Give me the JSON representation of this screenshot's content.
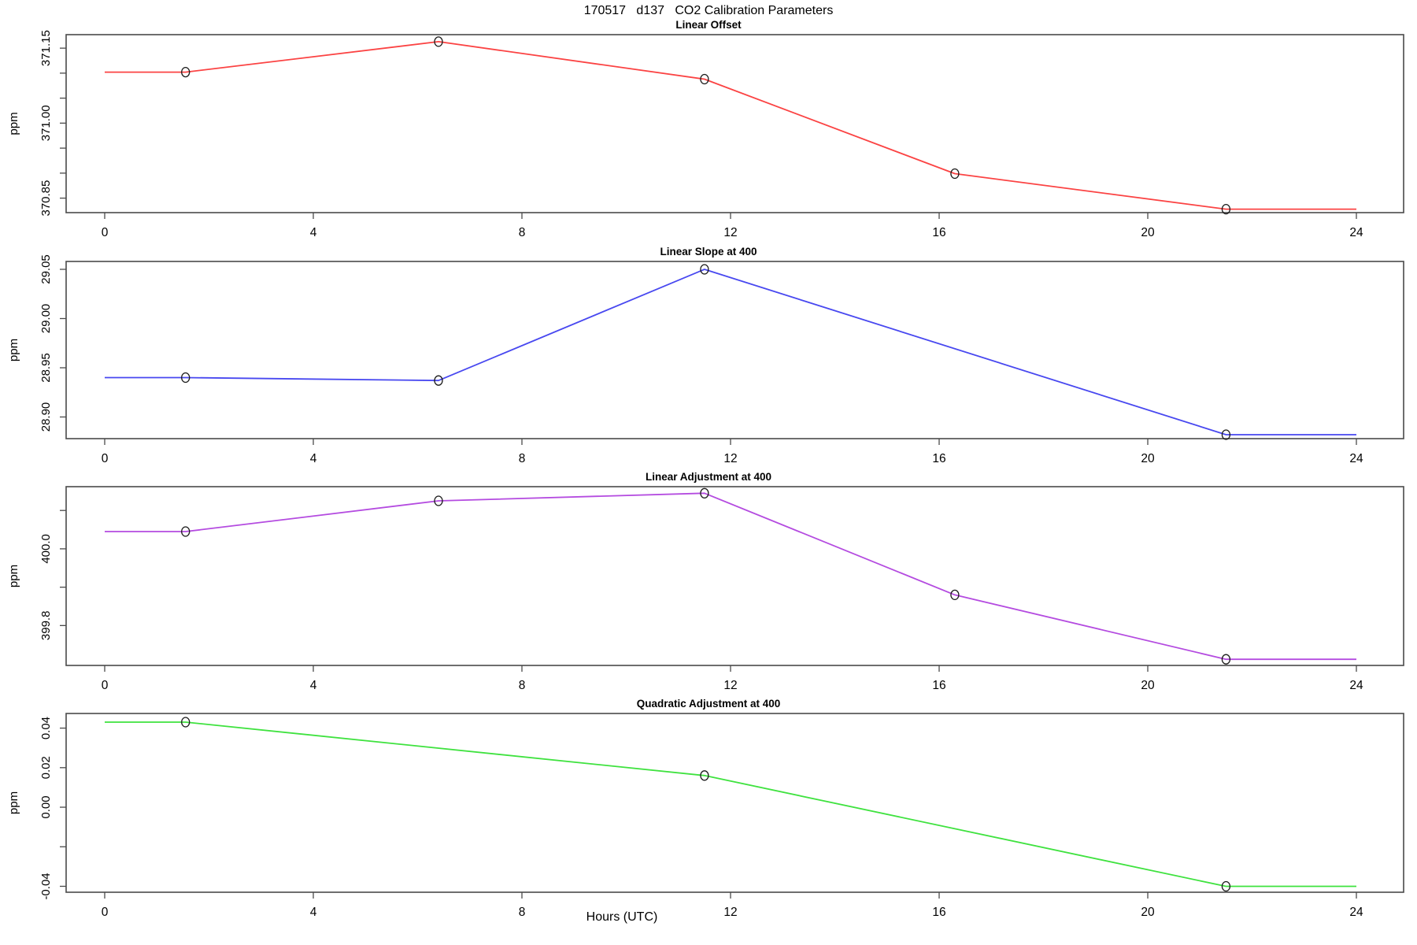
{
  "page": {
    "main_title": "170517   d137   CO2 Calibration Parameters",
    "x_axis_label": "Hours (UTC)",
    "background_color": "#ffffff",
    "axis_color": "#4a4a4a",
    "marker": {
      "shape": "open-circle",
      "stroke_color": "#1c1c1c"
    }
  },
  "x_ticks": [
    {
      "v": 0,
      "label": "0"
    },
    {
      "v": 4,
      "label": "4"
    },
    {
      "v": 8,
      "label": "8"
    },
    {
      "v": 12,
      "label": "12"
    },
    {
      "v": 16,
      "label": "16"
    },
    {
      "v": 20,
      "label": "20"
    },
    {
      "v": 24,
      "label": "24"
    }
  ],
  "chart_data": [
    {
      "type": "line",
      "title": "Linear Offset",
      "ylabel": "ppm",
      "xlabel": "Hours (UTC)",
      "color": "#fb4343",
      "x": [
        1.55,
        6.4,
        11.5,
        16.3,
        21.5
      ],
      "y": [
        371.102,
        371.163,
        371.088,
        370.899,
        370.828
      ],
      "line_extends_flat_x": [
        0,
        24
      ],
      "xlim": [
        0,
        24
      ],
      "ylim": [
        370.821,
        371.177
      ],
      "yticks": [
        {
          "v": 370.85,
          "label": "370.85"
        },
        {
          "v": 370.9,
          "label": ""
        },
        {
          "v": 370.95,
          "label": ""
        },
        {
          "v": 371.0,
          "label": "371.00"
        },
        {
          "v": 371.05,
          "label": ""
        },
        {
          "v": 371.1,
          "label": ""
        },
        {
          "v": 371.15,
          "label": "371.15"
        }
      ]
    },
    {
      "type": "line",
      "title": "Linear Slope at 400",
      "ylabel": "ppm",
      "xlabel": "Hours (UTC)",
      "color": "#4848f0",
      "x": [
        1.55,
        6.4,
        11.5,
        21.5
      ],
      "y": [
        28.94,
        28.937,
        29.05,
        28.882
      ],
      "line_extends_flat_x": [
        0,
        24
      ],
      "xlim": [
        0,
        24
      ],
      "ylim": [
        28.878,
        29.058
      ],
      "yticks": [
        {
          "v": 28.9,
          "label": "28.90"
        },
        {
          "v": 28.95,
          "label": "28.95"
        },
        {
          "v": 29.0,
          "label": "29.00"
        },
        {
          "v": 29.05,
          "label": "29.05"
        }
      ]
    },
    {
      "type": "line",
      "title": "Linear Adjustment at 400",
      "ylabel": "ppm",
      "xlabel": "Hours (UTC)",
      "color": "#b44be0",
      "x": [
        1.55,
        6.4,
        11.5,
        16.3,
        21.5
      ],
      "y": [
        400.045,
        400.125,
        400.145,
        399.88,
        399.712
      ],
      "line_extends_flat_x": [
        0,
        24
      ],
      "xlim": [
        0,
        24
      ],
      "ylim": [
        399.696,
        400.162
      ],
      "yticks": [
        {
          "v": 399.8,
          "label": "399.8"
        },
        {
          "v": 399.9,
          "label": ""
        },
        {
          "v": 400.0,
          "label": "400.0"
        },
        {
          "v": 400.1,
          "label": ""
        }
      ]
    },
    {
      "type": "line",
      "title": "Quadratic Adjustment at 400",
      "ylabel": "ppm",
      "xlabel": "Hours (UTC)",
      "color": "#3fe23f",
      "x": [
        1.55,
        11.5,
        21.5
      ],
      "y": [
        0.043,
        0.016,
        -0.04
      ],
      "line_extends_flat_x": [
        0,
        24
      ],
      "xlim": [
        0,
        24
      ],
      "ylim": [
        -0.043,
        0.0474
      ],
      "yticks": [
        {
          "v": -0.04,
          "label": "-0.04"
        },
        {
          "v": -0.02,
          "label": ""
        },
        {
          "v": 0.0,
          "label": "0.00"
        },
        {
          "v": 0.02,
          "label": "0.02"
        },
        {
          "v": 0.04,
          "label": "0.04"
        }
      ]
    }
  ]
}
